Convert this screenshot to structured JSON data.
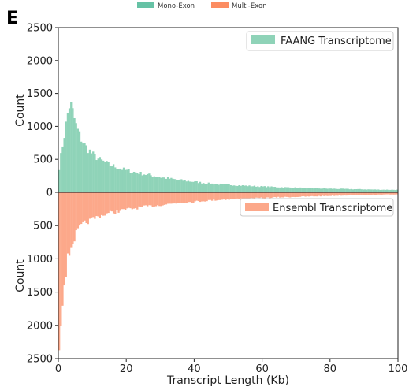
{
  "panel_letter": "E",
  "chart_data": {
    "type": "bar",
    "xlabel": "Transcript Length (Kb)",
    "ylabel_top": "Count",
    "ylabel_bottom": "Count",
    "xlim": [
      0,
      100
    ],
    "ylim_top": [
      0,
      2500
    ],
    "ylim_bottom": [
      0,
      2500
    ],
    "xticks": [
      "0",
      "20",
      "40",
      "60",
      "80",
      "100"
    ],
    "yticks_top": [
      "0",
      "500",
      "1000",
      "1500",
      "2000",
      "2500"
    ],
    "yticks_bottom": [
      "0",
      "500",
      "1000",
      "1500",
      "2000",
      "2500"
    ],
    "bin_width_kb": 0.5,
    "top_legend": [
      {
        "label": "Mono-Exon",
        "color": "#66c2a5"
      },
      {
        "label": "Multi-Exon",
        "color": "#fc8d62"
      }
    ],
    "series": [
      {
        "name": "FAANG Transcriptome",
        "color": "#8fd3b8",
        "orientation": "up",
        "legend_position": "top-right",
        "profile": [
          [
            0,
            300
          ],
          [
            0.5,
            450
          ],
          [
            1,
            650
          ],
          [
            1.5,
            800
          ],
          [
            2,
            950
          ],
          [
            2.5,
            1100
          ],
          [
            3,
            1280
          ],
          [
            3.5,
            1360
          ],
          [
            4,
            1250
          ],
          [
            4.5,
            1180
          ],
          [
            5,
            1050
          ],
          [
            6,
            900
          ],
          [
            7,
            780
          ],
          [
            8,
            700
          ],
          [
            9,
            640
          ],
          [
            10,
            580
          ],
          [
            12,
            500
          ],
          [
            15,
            420
          ],
          [
            18,
            370
          ],
          [
            20,
            330
          ],
          [
            25,
            280
          ],
          [
            30,
            230
          ],
          [
            35,
            190
          ],
          [
            40,
            160
          ],
          [
            45,
            130
          ],
          [
            50,
            115
          ],
          [
            55,
            100
          ],
          [
            60,
            88
          ],
          [
            65,
            78
          ],
          [
            70,
            70
          ],
          [
            75,
            62
          ],
          [
            80,
            55
          ],
          [
            85,
            50
          ],
          [
            90,
            45
          ],
          [
            95,
            40
          ],
          [
            100,
            38
          ]
        ]
      },
      {
        "name": "Ensembl Transcriptome",
        "color": "#fca88a",
        "orientation": "down",
        "legend_position": "upper-right",
        "profile": [
          [
            0,
            2460
          ],
          [
            0.5,
            2000
          ],
          [
            1,
            1700
          ],
          [
            1.5,
            1450
          ],
          [
            2,
            1250
          ],
          [
            2.5,
            1080
          ],
          [
            3,
            950
          ],
          [
            3.5,
            860
          ],
          [
            4,
            780
          ],
          [
            5,
            650
          ],
          [
            6,
            560
          ],
          [
            7,
            500
          ],
          [
            8,
            460
          ],
          [
            10,
            400
          ],
          [
            12,
            360
          ],
          [
            15,
            310
          ],
          [
            20,
            260
          ],
          [
            25,
            220
          ],
          [
            30,
            190
          ],
          [
            35,
            160
          ],
          [
            40,
            140
          ],
          [
            45,
            120
          ],
          [
            50,
            105
          ],
          [
            55,
            95
          ],
          [
            60,
            85
          ],
          [
            65,
            75
          ],
          [
            70,
            68
          ],
          [
            75,
            60
          ],
          [
            80,
            52
          ],
          [
            85,
            45
          ],
          [
            90,
            40
          ],
          [
            95,
            35
          ],
          [
            100,
            30
          ]
        ]
      }
    ]
  }
}
